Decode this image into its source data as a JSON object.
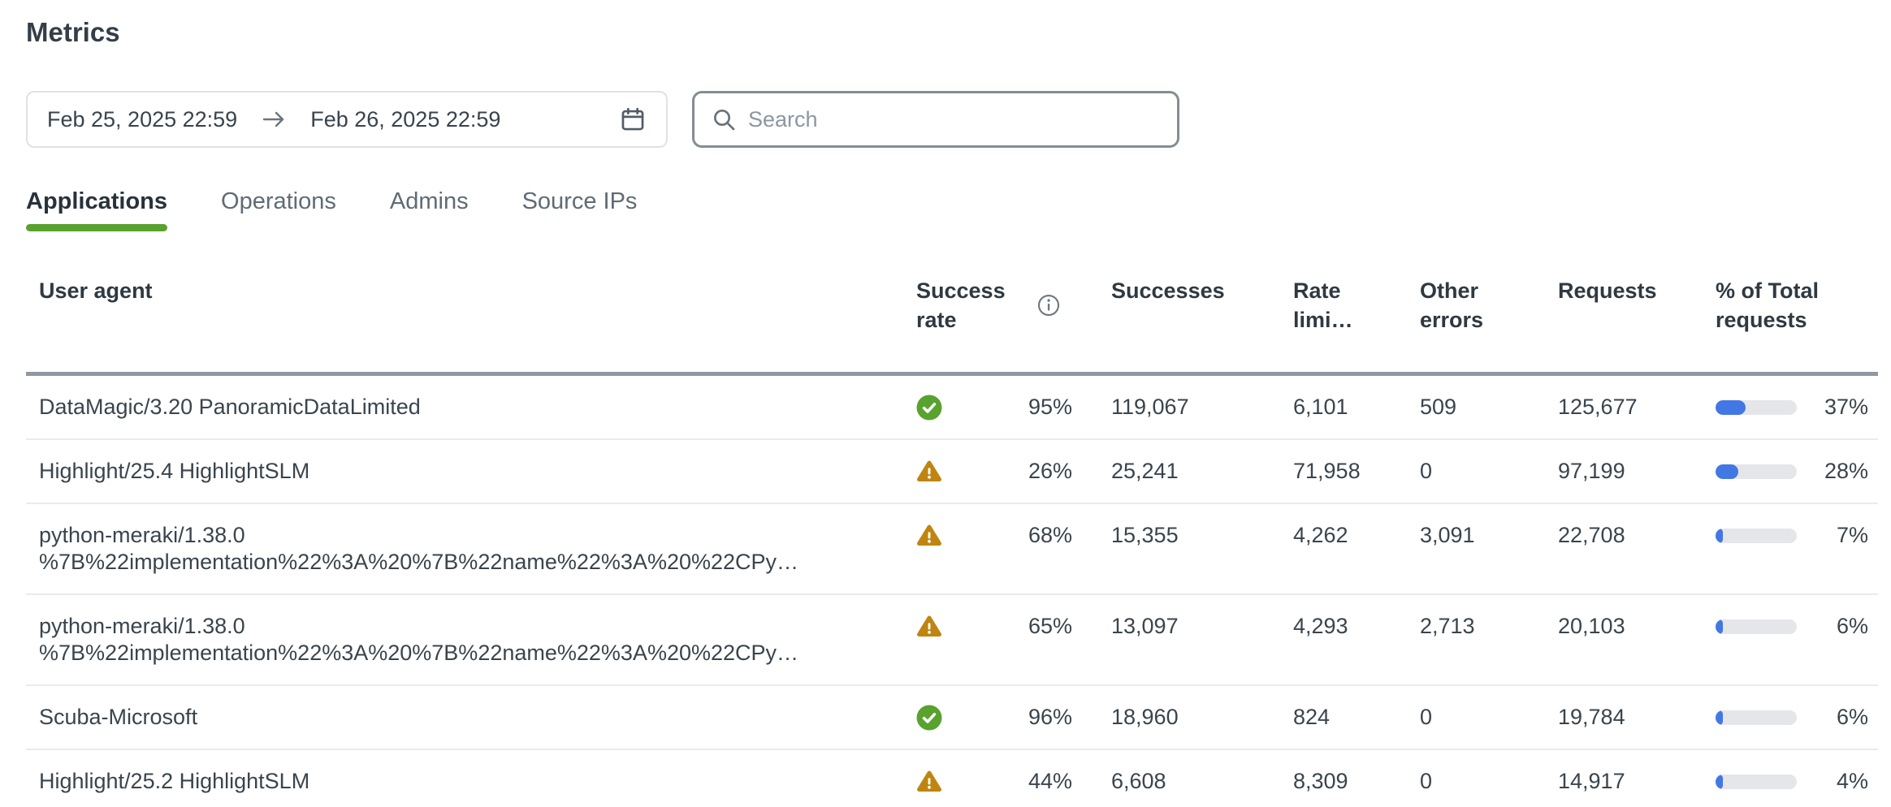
{
  "page": {
    "title": "Metrics"
  },
  "date_range": {
    "start": "Feb 25, 2025 22:59",
    "end": "Feb 26, 2025 22:59"
  },
  "search": {
    "placeholder": "Search",
    "value": ""
  },
  "tabs": [
    {
      "label": "Applications",
      "active": true
    },
    {
      "label": "Operations",
      "active": false
    },
    {
      "label": "Admins",
      "active": false
    },
    {
      "label": "Source IPs",
      "active": false
    }
  ],
  "table": {
    "columns": {
      "user_agent": "User agent",
      "success_rate": "Success rate",
      "successes": "Successes",
      "rate_limited": "Rate limi…",
      "other_errors": "Other errors",
      "requests": "Requests",
      "pct_total": "% of Total requests"
    },
    "rows": [
      {
        "user_agent": "DataMagic/3.20 PanoramicDataLimited",
        "status": "success",
        "success_rate": "95%",
        "successes": "119,067",
        "rate_limited": "6,101",
        "other_errors": "509",
        "requests": "125,677",
        "pct_total": "37%",
        "pct_value": 37
      },
      {
        "user_agent": "Highlight/25.4 HighlightSLM",
        "status": "warning",
        "success_rate": "26%",
        "successes": "25,241",
        "rate_limited": "71,958",
        "other_errors": "0",
        "requests": "97,199",
        "pct_total": "28%",
        "pct_value": 28
      },
      {
        "user_agent": "python-meraki/1.38.0 %7B%22implementation%22%3A%20%7B%22name%22%3A%20%22CPy…",
        "status": "warning",
        "success_rate": "68%",
        "successes": "15,355",
        "rate_limited": "4,262",
        "other_errors": "3,091",
        "requests": "22,708",
        "pct_total": "7%",
        "pct_value": 7
      },
      {
        "user_agent": "python-meraki/1.38.0 %7B%22implementation%22%3A%20%7B%22name%22%3A%20%22CPy…",
        "status": "warning",
        "success_rate": "65%",
        "successes": "13,097",
        "rate_limited": "4,293",
        "other_errors": "2,713",
        "requests": "20,103",
        "pct_total": "6%",
        "pct_value": 6
      },
      {
        "user_agent": "Scuba-Microsoft",
        "status": "success",
        "success_rate": "96%",
        "successes": "18,960",
        "rate_limited": "824",
        "other_errors": "0",
        "requests": "19,784",
        "pct_total": "6%",
        "pct_value": 6
      },
      {
        "user_agent": "Highlight/25.2 HighlightSLM",
        "status": "warning",
        "success_rate": "44%",
        "successes": "6,608",
        "rate_limited": "8,309",
        "other_errors": "0",
        "requests": "14,917",
        "pct_total": "4%",
        "pct_value": 4
      }
    ]
  },
  "colors": {
    "accent_green": "#58a22d",
    "warning_amber": "#bf8510",
    "bar_blue": "#4377e3",
    "bar_track": "#e4e6e9"
  },
  "icons": {
    "search-icon": "magnifier",
    "calendar-icon": "calendar outline",
    "arrow-right-icon": "→",
    "info-icon": "ⓘ",
    "check-circle-icon": "white check in green circle",
    "warning-triangle-icon": "white ! in amber rounded triangle"
  }
}
